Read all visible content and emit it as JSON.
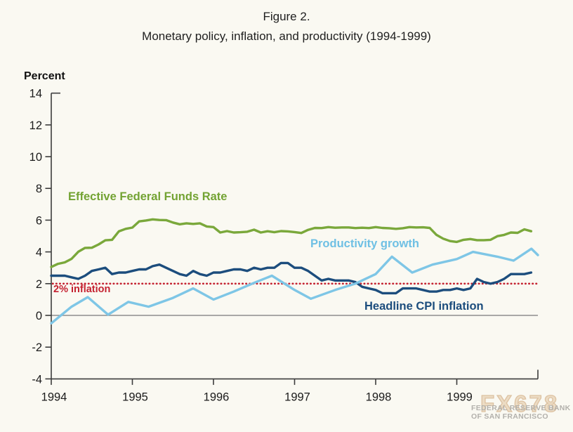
{
  "figure": {
    "title": "Figure 2.",
    "subtitle": "Monetary policy, inflation, and productivity (1994-1999)"
  },
  "watermark": {
    "logo": "FX678",
    "org_line1": "FEDERAL RESERVE BANK",
    "org_line2": "OF SAN FRANCISCO"
  },
  "chart_data": {
    "type": "line",
    "title": "Monetary policy, inflation, and productivity (1994-1999)",
    "xlabel": "",
    "ylabel": "Percent",
    "ylim": [
      -4,
      14
    ],
    "yticks": [
      14,
      12,
      10,
      8,
      6,
      4,
      2,
      0,
      -2,
      -4
    ],
    "xlim": [
      1994,
      2000
    ],
    "xticks": [
      1994,
      1995,
      1996,
      1997,
      1998,
      1999
    ],
    "grid": false,
    "zero_line": {
      "value": 0,
      "color": "#8e8e8e"
    },
    "axis_color": "#3c3c3c",
    "background": "#faf9f2",
    "legend_position": "inline-labels",
    "reference_line": {
      "label": "2% inflation",
      "value": 2,
      "color": "#c42130",
      "style": "dotted"
    },
    "series": [
      {
        "name": "Effective Federal Funds Rate",
        "color": "#7aa83b",
        "x_start": 1994.0,
        "x_step_months": 1,
        "values": [
          3.05,
          3.25,
          3.34,
          3.56,
          4.01,
          4.25,
          4.26,
          4.47,
          4.73,
          4.76,
          5.29,
          5.45,
          5.53,
          5.92,
          5.98,
          6.05,
          6.01,
          6.0,
          5.85,
          5.74,
          5.8,
          5.76,
          5.8,
          5.6,
          5.56,
          5.22,
          5.31,
          5.22,
          5.24,
          5.27,
          5.4,
          5.22,
          5.3,
          5.24,
          5.31,
          5.29,
          5.25,
          5.19,
          5.39,
          5.51,
          5.5,
          5.56,
          5.52,
          5.54,
          5.54,
          5.5,
          5.52,
          5.5,
          5.56,
          5.51,
          5.49,
          5.45,
          5.49,
          5.56,
          5.54,
          5.55,
          5.51,
          5.07,
          4.83,
          4.68,
          4.63,
          4.76,
          4.81,
          4.74,
          4.74,
          4.76,
          4.99,
          5.07,
          5.22,
          5.2,
          5.42,
          5.3
        ]
      },
      {
        "name": "Headline CPI inflation",
        "color": "#1c4d7d",
        "x_start": 1994.0,
        "x_step_months": 1,
        "values": [
          2.5,
          2.5,
          2.5,
          2.4,
          2.3,
          2.5,
          2.8,
          2.9,
          3.0,
          2.6,
          2.7,
          2.7,
          2.8,
          2.9,
          2.9,
          3.1,
          3.2,
          3.0,
          2.8,
          2.6,
          2.5,
          2.8,
          2.6,
          2.5,
          2.7,
          2.7,
          2.8,
          2.9,
          2.9,
          2.8,
          3.0,
          2.9,
          3.0,
          3.0,
          3.3,
          3.3,
          3.0,
          3.0,
          2.8,
          2.5,
          2.2,
          2.3,
          2.2,
          2.2,
          2.2,
          2.1,
          1.8,
          1.7,
          1.6,
          1.4,
          1.4,
          1.4,
          1.7,
          1.7,
          1.7,
          1.6,
          1.5,
          1.5,
          1.6,
          1.6,
          1.7,
          1.6,
          1.7,
          2.3,
          2.1,
          2.0,
          2.1,
          2.3,
          2.6,
          2.6,
          2.6,
          2.7
        ]
      },
      {
        "name": "Productivity growth",
        "color": "#7ec6e6",
        "points": [
          [
            1994.0,
            -0.5
          ],
          [
            1994.25,
            0.55
          ],
          [
            1994.45,
            1.15
          ],
          [
            1994.7,
            0.05
          ],
          [
            1994.95,
            0.85
          ],
          [
            1995.2,
            0.55
          ],
          [
            1995.5,
            1.1
          ],
          [
            1995.75,
            1.7
          ],
          [
            1996.0,
            1.0
          ],
          [
            1996.25,
            1.5
          ],
          [
            1996.5,
            2.05
          ],
          [
            1996.72,
            2.5
          ],
          [
            1997.0,
            1.6
          ],
          [
            1997.2,
            1.05
          ],
          [
            1997.5,
            1.6
          ],
          [
            1997.75,
            2.0
          ],
          [
            1998.0,
            2.6
          ],
          [
            1998.2,
            3.7
          ],
          [
            1998.45,
            2.7
          ],
          [
            1998.7,
            3.2
          ],
          [
            1999.0,
            3.55
          ],
          [
            1999.2,
            4.0
          ],
          [
            1999.5,
            3.7
          ],
          [
            1999.7,
            3.45
          ],
          [
            1999.92,
            4.2
          ],
          [
            2000.0,
            3.8
          ]
        ]
      }
    ]
  }
}
